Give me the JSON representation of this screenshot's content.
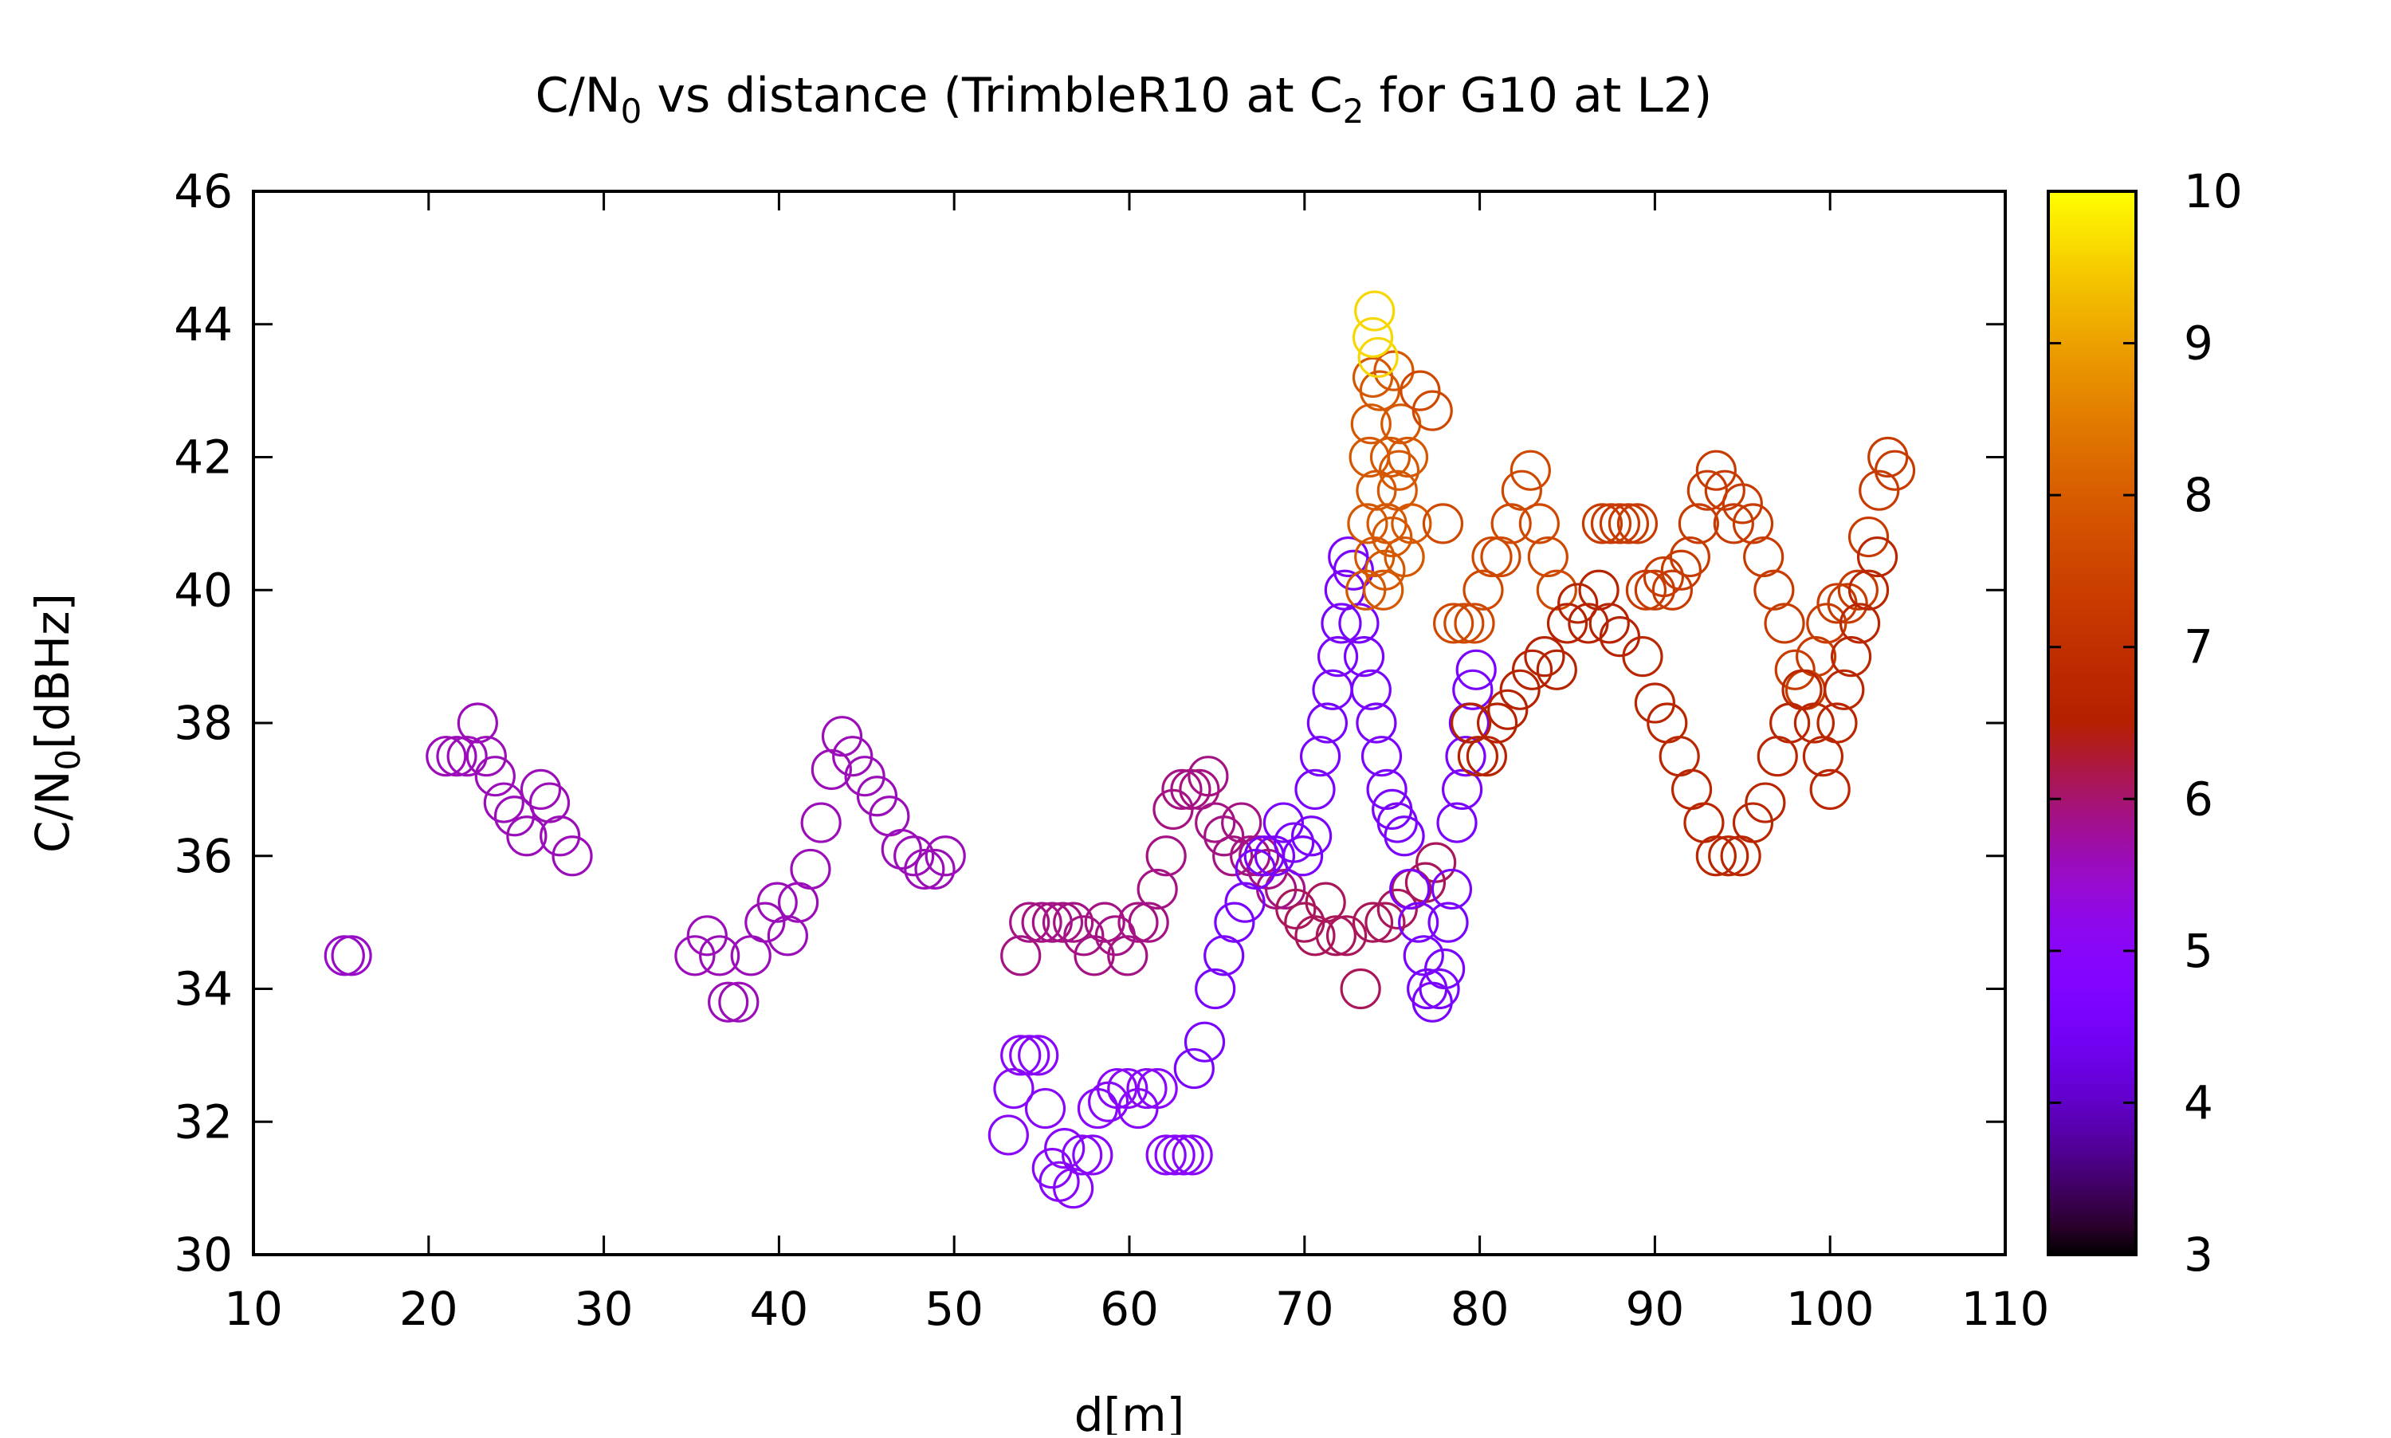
{
  "chart_data": {
    "type": "scatter",
    "title_parts": {
      "a": "C/N",
      "a_sub": "0",
      "b": " vs distance (TrimbleR10 at C",
      "b_sub": "2",
      "c": " for G10 at L2)"
    },
    "xlabel": "d[m]",
    "ylabel_parts": {
      "main": "C/N",
      "sub": "0",
      "rest": "[dBHz]"
    },
    "xlim": [
      10,
      110
    ],
    "ylim": [
      30,
      46
    ],
    "xticks": [
      "10",
      "20",
      "30",
      "40",
      "50",
      "60",
      "70",
      "80",
      "90",
      "100",
      "110"
    ],
    "yticks": [
      "30",
      "32",
      "34",
      "36",
      "38",
      "40",
      "42",
      "44",
      "46"
    ],
    "colorbar": {
      "range": [
        3,
        10
      ],
      "ticks": [
        "3",
        "4",
        "5",
        "6",
        "7",
        "8",
        "9",
        "10"
      ],
      "palette": "gnuplot (black-purple-red-orange-yellow)"
    },
    "marker": "open circle",
    "grid": false,
    "points": [
      [
        15.2,
        34.5,
        5.5
      ],
      [
        15.6,
        34.5,
        5.5
      ],
      [
        21.0,
        37.5,
        5.6
      ],
      [
        21.6,
        37.5,
        5.6
      ],
      [
        22.2,
        37.5,
        5.6
      ],
      [
        22.8,
        38.0,
        5.6
      ],
      [
        23.3,
        37.5,
        5.6
      ],
      [
        23.8,
        37.2,
        5.6
      ],
      [
        24.3,
        36.8,
        5.6
      ],
      [
        24.9,
        36.6,
        5.6
      ],
      [
        25.6,
        36.3,
        5.6
      ],
      [
        26.4,
        37.0,
        5.6
      ],
      [
        26.9,
        36.8,
        5.6
      ],
      [
        27.5,
        36.3,
        5.6
      ],
      [
        28.2,
        36.0,
        5.6
      ],
      [
        35.2,
        34.5,
        5.6
      ],
      [
        35.9,
        34.8,
        5.6
      ],
      [
        36.6,
        34.5,
        5.6
      ],
      [
        37.1,
        33.8,
        5.6
      ],
      [
        37.7,
        33.8,
        5.6
      ],
      [
        38.4,
        34.5,
        5.6
      ],
      [
        39.2,
        35.0,
        5.6
      ],
      [
        39.9,
        35.3,
        5.6
      ],
      [
        40.5,
        34.8,
        5.6
      ],
      [
        41.1,
        35.3,
        5.6
      ],
      [
        41.8,
        35.8,
        5.6
      ],
      [
        42.4,
        36.5,
        5.6
      ],
      [
        43.0,
        37.3,
        5.6
      ],
      [
        43.6,
        37.8,
        5.6
      ],
      [
        44.2,
        37.5,
        5.6
      ],
      [
        44.9,
        37.2,
        5.6
      ],
      [
        45.6,
        36.9,
        5.6
      ],
      [
        46.3,
        36.6,
        5.6
      ],
      [
        47.0,
        36.1,
        5.6
      ],
      [
        47.7,
        36.0,
        5.6
      ],
      [
        48.3,
        35.8,
        5.6
      ],
      [
        48.9,
        35.8,
        5.6
      ],
      [
        49.5,
        36.0,
        5.6
      ],
      [
        53.1,
        31.8,
        5.0
      ],
      [
        53.4,
        32.5,
        5.0
      ],
      [
        53.8,
        33.0,
        5.0
      ],
      [
        54.3,
        33.0,
        5.0
      ],
      [
        54.8,
        33.0,
        5.0
      ],
      [
        55.2,
        32.2,
        5.0
      ],
      [
        55.6,
        31.3,
        5.0
      ],
      [
        56.0,
        31.1,
        5.0
      ],
      [
        56.3,
        31.6,
        5.0
      ],
      [
        56.8,
        31.0,
        5.0
      ],
      [
        57.3,
        31.5,
        5.0
      ],
      [
        57.9,
        31.5,
        5.0
      ],
      [
        58.2,
        32.2,
        5.0
      ],
      [
        58.8,
        32.3,
        5.0
      ],
      [
        59.3,
        32.5,
        5.0
      ],
      [
        59.9,
        32.5,
        5.0
      ],
      [
        60.5,
        32.2,
        5.0
      ],
      [
        61.0,
        32.5,
        5.0
      ],
      [
        61.6,
        32.5,
        5.0
      ],
      [
        62.1,
        31.5,
        5.0
      ],
      [
        62.6,
        31.5,
        5.0
      ],
      [
        63.1,
        31.5,
        5.0
      ],
      [
        63.6,
        31.5,
        5.0
      ],
      [
        53.8,
        34.5,
        5.9
      ],
      [
        54.3,
        35.0,
        5.9
      ],
      [
        55.0,
        35.0,
        5.9
      ],
      [
        55.6,
        35.0,
        5.9
      ],
      [
        56.2,
        35.0,
        5.9
      ],
      [
        56.8,
        35.0,
        5.9
      ],
      [
        57.4,
        34.8,
        5.9
      ],
      [
        58.0,
        34.5,
        5.9
      ],
      [
        58.6,
        35.0,
        5.9
      ],
      [
        59.2,
        34.8,
        5.9
      ],
      [
        59.9,
        34.5,
        5.9
      ],
      [
        60.5,
        35.0,
        5.9
      ],
      [
        61.1,
        35.0,
        5.9
      ],
      [
        61.6,
        35.5,
        5.9
      ],
      [
        62.1,
        36.0,
        5.9
      ],
      [
        62.5,
        36.7,
        5.9
      ],
      [
        63.0,
        37.0,
        5.9
      ],
      [
        63.5,
        37.0,
        5.9
      ],
      [
        64.0,
        37.0,
        5.9
      ],
      [
        64.5,
        37.2,
        5.9
      ],
      [
        64.9,
        36.5,
        5.9
      ],
      [
        65.4,
        36.3,
        5.9
      ],
      [
        65.9,
        36.0,
        5.9
      ],
      [
        66.4,
        36.5,
        5.9
      ],
      [
        66.9,
        36.0,
        5.9
      ],
      [
        67.4,
        36.0,
        5.9
      ],
      [
        67.9,
        35.8,
        5.9
      ],
      [
        68.4,
        35.5,
        5.9
      ],
      [
        68.9,
        35.5,
        5.9
      ],
      [
        69.5,
        35.2,
        6.1
      ],
      [
        70.0,
        35.0,
        6.1
      ],
      [
        70.6,
        34.8,
        6.1
      ],
      [
        71.2,
        35.3,
        6.1
      ],
      [
        71.8,
        34.8,
        6.1
      ],
      [
        72.4,
        34.8,
        6.1
      ],
      [
        73.2,
        34.0,
        6.1
      ],
      [
        73.9,
        35.0,
        6.1
      ],
      [
        74.6,
        35.0,
        6.1
      ],
      [
        75.3,
        35.2,
        6.1
      ],
      [
        76.1,
        35.5,
        6.1
      ],
      [
        76.9,
        35.6,
        6.1
      ],
      [
        77.5,
        35.9,
        6.1
      ],
      [
        63.7,
        32.8,
        4.6
      ],
      [
        64.3,
        33.2,
        4.6
      ],
      [
        64.9,
        34.0,
        4.6
      ],
      [
        65.4,
        34.5,
        4.6
      ],
      [
        66.0,
        35.0,
        4.6
      ],
      [
        66.6,
        35.3,
        4.6
      ],
      [
        67.2,
        35.8,
        4.6
      ],
      [
        67.7,
        36.0,
        4.6
      ],
      [
        68.3,
        36.0,
        4.6
      ],
      [
        68.8,
        36.5,
        4.6
      ],
      [
        69.4,
        36.2,
        4.6
      ],
      [
        69.9,
        36.0,
        4.6
      ],
      [
        70.4,
        36.3,
        4.6
      ],
      [
        70.6,
        37.0,
        4.6
      ],
      [
        70.9,
        37.5,
        4.6
      ],
      [
        71.3,
        38.0,
        4.6
      ],
      [
        71.6,
        38.5,
        4.6
      ],
      [
        71.9,
        39.0,
        4.6
      ],
      [
        72.1,
        39.5,
        4.6
      ],
      [
        72.3,
        40.0,
        4.6
      ],
      [
        72.5,
        40.5,
        4.6
      ],
      [
        72.8,
        40.3,
        4.6
      ],
      [
        73.1,
        39.5,
        4.6
      ],
      [
        73.4,
        39.0,
        4.6
      ],
      [
        73.8,
        38.5,
        4.6
      ],
      [
        74.1,
        38.0,
        4.6
      ],
      [
        74.4,
        37.5,
        4.6
      ],
      [
        74.7,
        37.0,
        4.6
      ],
      [
        75.0,
        36.7,
        4.6
      ],
      [
        75.3,
        36.5,
        4.6
      ],
      [
        75.7,
        36.3,
        4.6
      ],
      [
        76.0,
        35.5,
        4.6
      ],
      [
        76.5,
        35.0,
        4.6
      ],
      [
        76.8,
        34.5,
        4.6
      ],
      [
        77.0,
        34.0,
        4.6
      ],
      [
        77.3,
        33.8,
        4.6
      ],
      [
        77.7,
        34.0,
        4.6
      ],
      [
        78.0,
        34.3,
        4.6
      ],
      [
        78.2,
        35.0,
        4.6
      ],
      [
        78.4,
        35.5,
        4.6
      ],
      [
        78.7,
        36.5,
        4.6
      ],
      [
        79.0,
        37.0,
        4.6
      ],
      [
        79.2,
        37.5,
        4.6
      ],
      [
        79.4,
        38.0,
        4.6
      ],
      [
        79.6,
        38.5,
        4.6
      ],
      [
        79.8,
        38.8,
        4.6
      ],
      [
        73.5,
        40.0,
        7.9
      ],
      [
        73.6,
        41.0,
        7.9
      ],
      [
        73.7,
        42.0,
        7.9
      ],
      [
        73.8,
        42.5,
        7.9
      ],
      [
        74.0,
        40.5,
        7.9
      ],
      [
        74.1,
        41.5,
        7.9
      ],
      [
        74.3,
        43.0,
        7.9
      ],
      [
        74.5,
        40.0,
        7.9
      ],
      [
        74.7,
        41.0,
        7.9
      ],
      [
        74.9,
        42.0,
        7.9
      ],
      [
        75.1,
        43.3,
        7.9
      ],
      [
        75.3,
        41.5,
        7.9
      ],
      [
        75.5,
        42.5,
        7.9
      ],
      [
        75.7,
        40.5,
        7.9
      ],
      [
        75.9,
        42.0,
        7.9
      ],
      [
        76.1,
        41.0,
        7.9
      ],
      [
        74.6,
        40.3,
        7.9
      ],
      [
        75.0,
        40.8,
        7.9
      ],
      [
        75.4,
        41.8,
        7.9
      ],
      [
        73.9,
        43.2,
        7.9
      ],
      [
        76.6,
        43.0,
        7.6
      ],
      [
        77.3,
        42.7,
        7.6
      ],
      [
        77.9,
        41.0,
        7.6
      ],
      [
        78.5,
        39.5,
        7.6
      ],
      [
        79.1,
        39.5,
        7.6
      ],
      [
        79.7,
        39.5,
        7.6
      ],
      [
        80.2,
        40.0,
        7.6
      ],
      [
        80.7,
        40.5,
        7.6
      ],
      [
        81.2,
        40.5,
        7.6
      ],
      [
        81.8,
        41.0,
        7.6
      ],
      [
        82.4,
        41.5,
        7.6
      ],
      [
        82.9,
        41.8,
        7.6
      ],
      [
        83.4,
        41.0,
        7.6
      ],
      [
        83.9,
        40.5,
        7.6
      ],
      [
        84.4,
        40.0,
        7.6
      ],
      [
        73.9,
        43.8,
        9.6
      ],
      [
        74.0,
        44.2,
        9.6
      ],
      [
        74.2,
        43.5,
        9.6
      ],
      [
        79.5,
        38.0,
        6.6
      ],
      [
        79.9,
        37.5,
        6.6
      ],
      [
        80.4,
        37.5,
        6.6
      ],
      [
        81.0,
        38.0,
        6.6
      ],
      [
        81.6,
        38.2,
        6.6
      ],
      [
        82.3,
        38.5,
        6.6
      ],
      [
        83.0,
        38.8,
        6.6
      ],
      [
        83.7,
        39.0,
        6.6
      ],
      [
        84.4,
        38.8,
        6.6
      ],
      [
        85.0,
        39.5,
        6.6
      ],
      [
        85.6,
        39.8,
        6.6
      ],
      [
        86.2,
        39.5,
        6.6
      ],
      [
        86.8,
        40.0,
        6.6
      ],
      [
        87.4,
        39.5,
        6.6
      ],
      [
        88.0,
        39.3,
        6.6
      ],
      [
        87.0,
        41.0,
        7.3
      ],
      [
        87.5,
        41.0,
        7.3
      ],
      [
        88.0,
        41.0,
        7.3
      ],
      [
        88.5,
        41.0,
        7.3
      ],
      [
        89.0,
        41.0,
        7.3
      ],
      [
        89.5,
        40.0,
        7.3
      ],
      [
        90.0,
        40.0,
        7.3
      ],
      [
        90.5,
        40.2,
        7.3
      ],
      [
        91.0,
        40.0,
        7.3
      ],
      [
        91.5,
        40.3,
        7.3
      ],
      [
        92.0,
        40.5,
        7.3
      ],
      [
        92.5,
        41.0,
        7.3
      ],
      [
        93.0,
        41.5,
        7.3
      ],
      [
        93.5,
        41.8,
        7.3
      ],
      [
        94.0,
        41.5,
        7.3
      ],
      [
        94.5,
        41.0,
        7.3
      ],
      [
        95.0,
        41.3,
        7.3
      ],
      [
        95.6,
        41.0,
        7.3
      ],
      [
        96.2,
        40.5,
        7.3
      ],
      [
        96.8,
        40.0,
        7.3
      ],
      [
        97.4,
        39.5,
        7.3
      ],
      [
        98.0,
        38.8,
        7.3
      ],
      [
        98.6,
        38.5,
        7.3
      ],
      [
        99.2,
        39.0,
        7.3
      ],
      [
        99.8,
        39.5,
        7.3
      ],
      [
        100.4,
        39.8,
        7.3
      ],
      [
        101.0,
        39.8,
        7.3
      ],
      [
        101.6,
        40.0,
        7.3
      ],
      [
        102.2,
        40.8,
        7.3
      ],
      [
        102.8,
        41.5,
        7.3
      ],
      [
        103.3,
        42.0,
        7.3
      ],
      [
        103.7,
        41.8,
        7.3
      ],
      [
        89.3,
        39.0,
        6.7
      ],
      [
        90.0,
        38.3,
        6.7
      ],
      [
        90.7,
        38.0,
        6.7
      ],
      [
        91.4,
        37.5,
        6.7
      ],
      [
        92.1,
        37.0,
        6.7
      ],
      [
        92.8,
        36.5,
        6.7
      ],
      [
        93.5,
        36.0,
        6.7
      ],
      [
        94.2,
        36.0,
        6.7
      ],
      [
        94.9,
        36.0,
        6.7
      ],
      [
        95.6,
        36.5,
        6.7
      ],
      [
        96.3,
        36.8,
        6.7
      ],
      [
        97.0,
        37.5,
        6.7
      ],
      [
        97.7,
        38.0,
        6.7
      ],
      [
        98.4,
        38.5,
        6.7
      ],
      [
        99.1,
        38.0,
        6.7
      ],
      [
        99.6,
        37.5,
        6.7
      ],
      [
        100.0,
        37.0,
        6.7
      ],
      [
        100.4,
        38.0,
        6.7
      ],
      [
        100.8,
        38.5,
        6.7
      ],
      [
        101.2,
        39.0,
        6.7
      ],
      [
        101.7,
        39.5,
        6.7
      ],
      [
        102.2,
        40.0,
        6.7
      ],
      [
        102.7,
        40.5,
        6.7
      ]
    ]
  }
}
